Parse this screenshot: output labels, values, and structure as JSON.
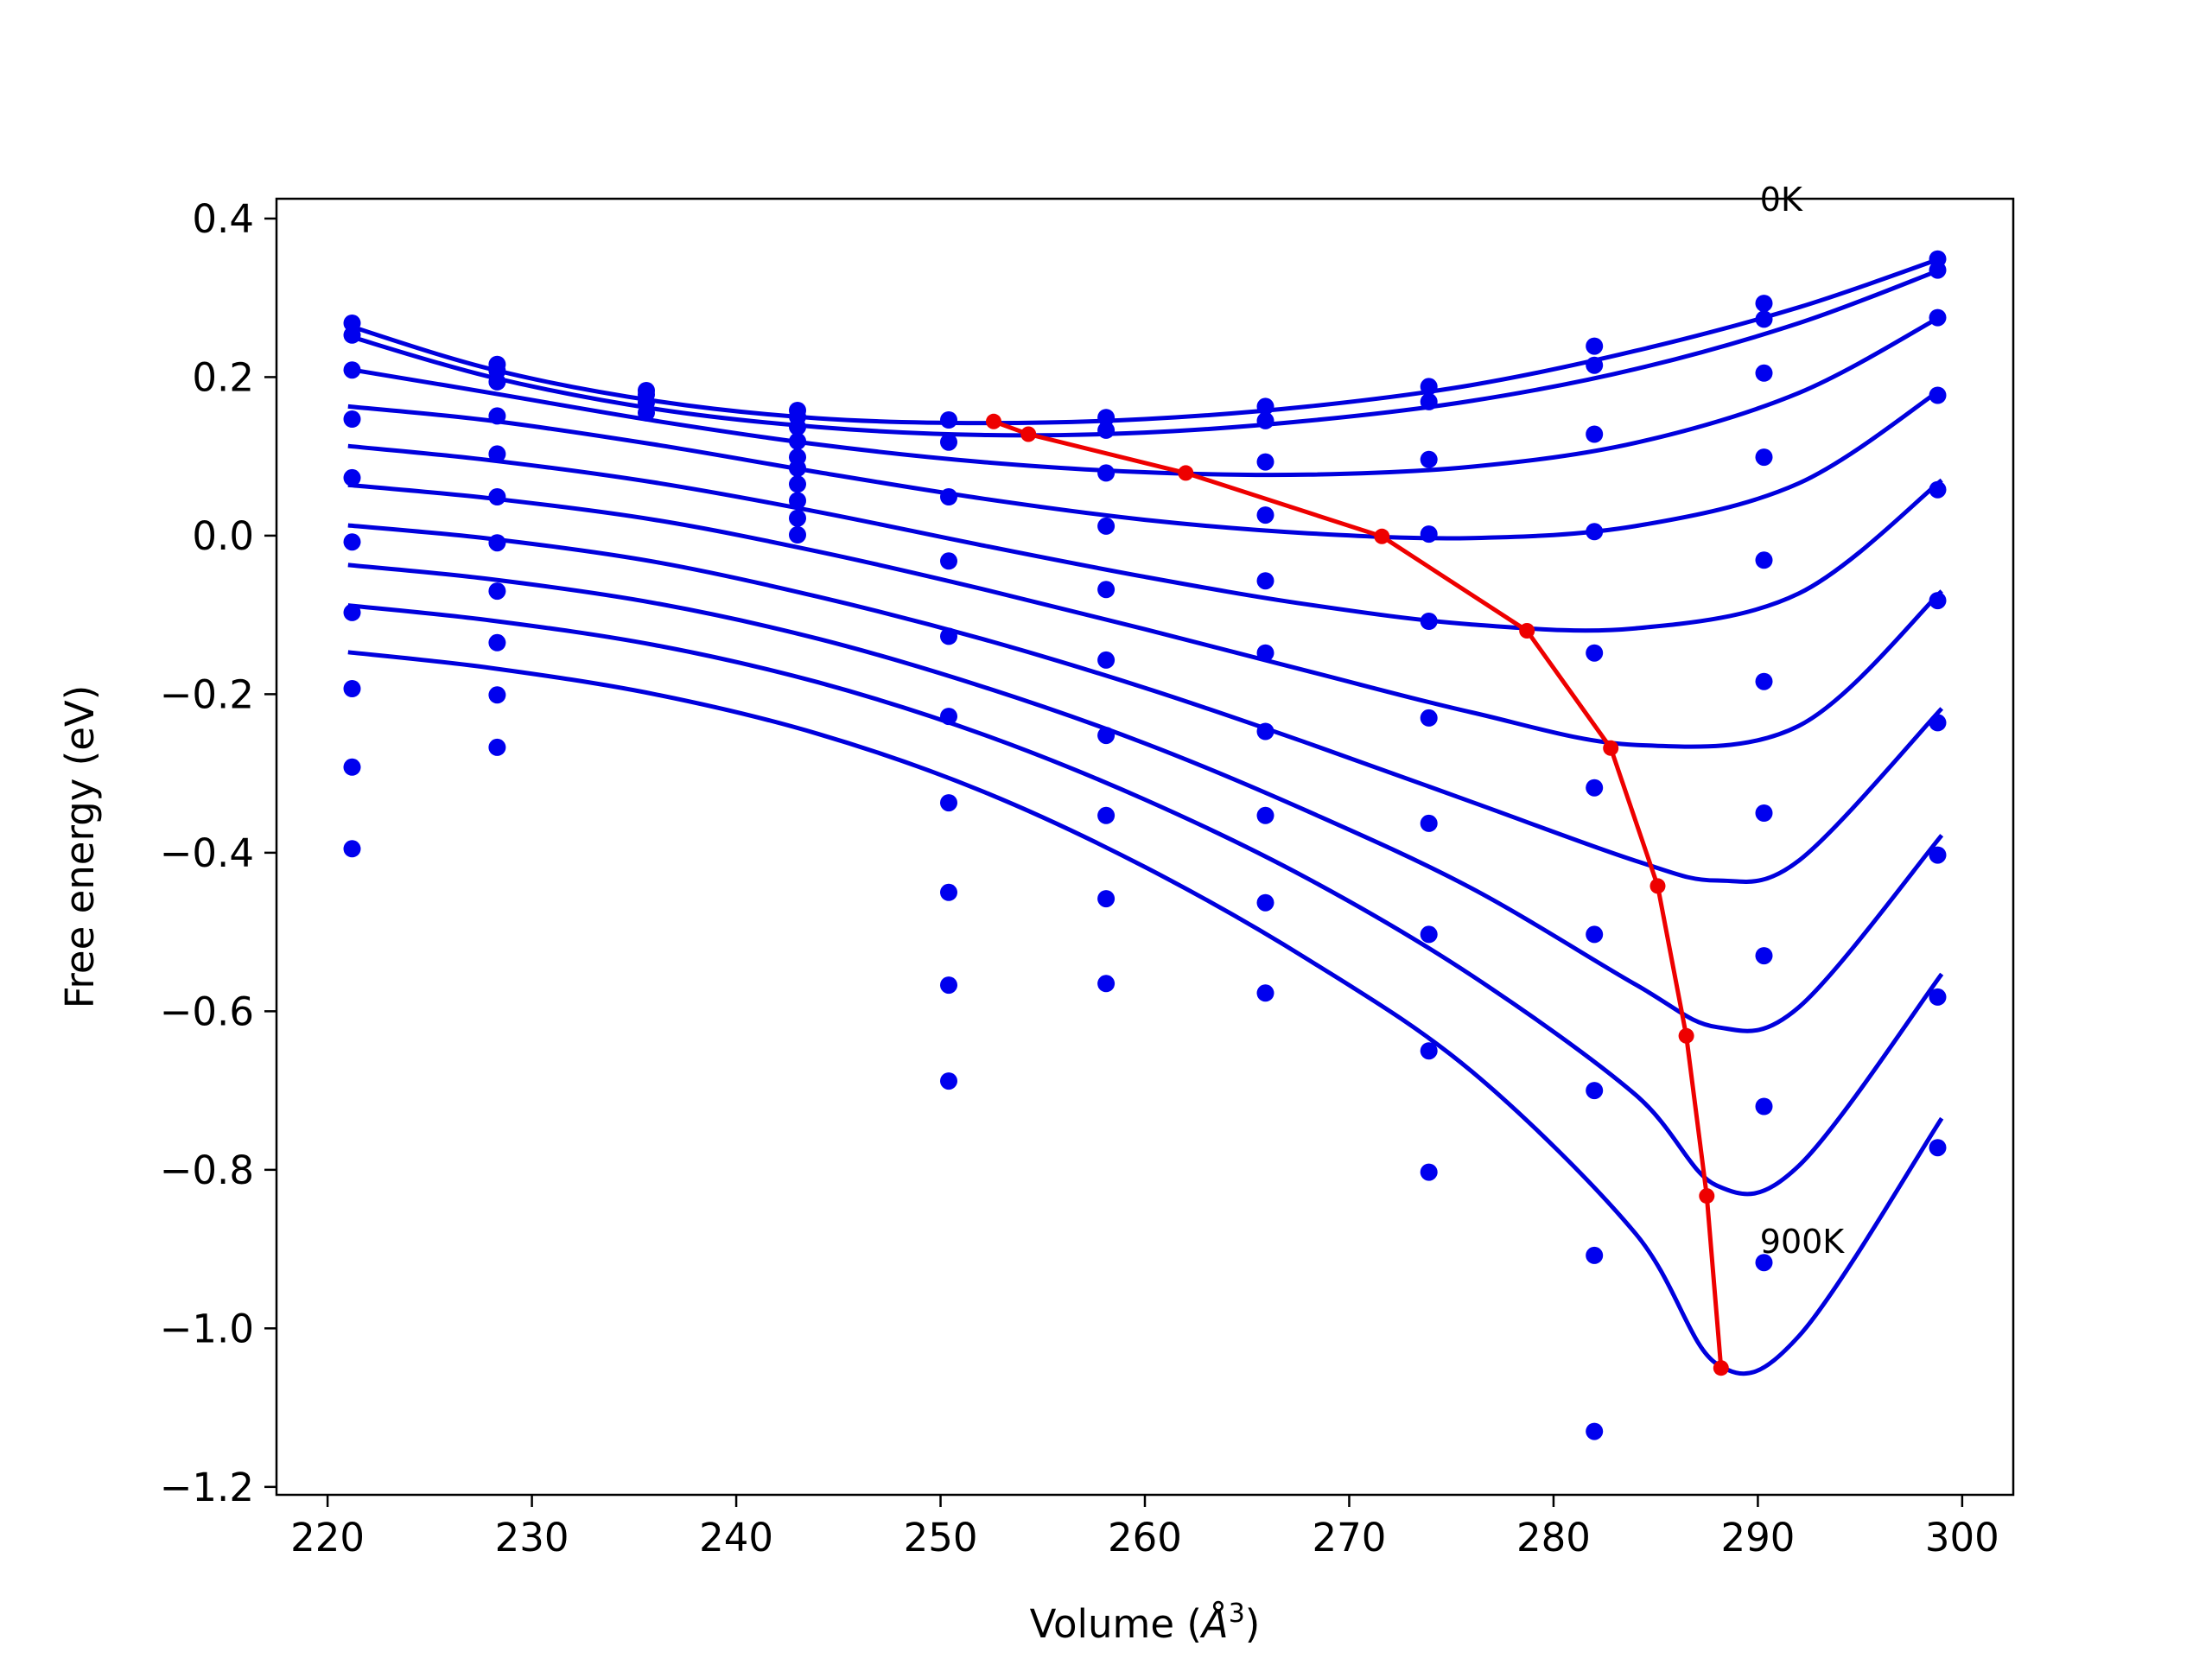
{
  "chart_data": {
    "type": "line",
    "title": "",
    "xlabel": "Volume (",
    "xlabel_math": "Å",
    "xlabel_sup": "3",
    "xlabel_close": ")",
    "ylabel": "Free energy (eV)",
    "xlim": [
      217.5,
      302.5
    ],
    "ylim": [
      -1.21,
      0.425
    ],
    "xticks": [
      220,
      230,
      240,
      250,
      260,
      270,
      280,
      290,
      300
    ],
    "xtick_labels": [
      "220",
      "230",
      "240",
      "250",
      "260",
      "270",
      "280",
      "290",
      "300"
    ],
    "yticks": [
      0.4,
      0.2,
      0.0,
      -0.2,
      -0.4,
      -0.6,
      -0.8,
      -1.0,
      -1.2
    ],
    "ytick_labels": [
      "0.4",
      "0.2",
      "0.0",
      "−0.2",
      "−0.4",
      "−0.6",
      "−0.8",
      "−1.0",
      "−1.2"
    ],
    "grid": false,
    "annotations": [
      {
        "text": "0K",
        "x": 290.1,
        "y": 0.41
      },
      {
        "text": "900K",
        "x": 290.1,
        "y": -0.905
      }
    ],
    "colors": {
      "fit": "#0000dd",
      "points": "#0000ee",
      "min_path": "#ee0000"
    },
    "fit_curves": [
      [
        [
          221,
          0.265
        ],
        [
          228,
          0.21
        ],
        [
          236,
          0.17
        ],
        [
          244,
          0.148
        ],
        [
          252,
          0.142
        ],
        [
          260,
          0.147
        ],
        [
          268,
          0.163
        ],
        [
          276,
          0.19
        ],
        [
          284,
          0.233
        ],
        [
          292,
          0.288
        ],
        [
          299,
          0.35
        ]
      ],
      [
        [
          221,
          0.252
        ],
        [
          228,
          0.2
        ],
        [
          236,
          0.16
        ],
        [
          244,
          0.137
        ],
        [
          252,
          0.127
        ],
        [
          260,
          0.13
        ],
        [
          268,
          0.145
        ],
        [
          276,
          0.17
        ],
        [
          284,
          0.21
        ],
        [
          292,
          0.268
        ],
        [
          299,
          0.336
        ]
      ],
      [
        [
          221,
          0.21
        ],
        [
          228,
          0.18
        ],
        [
          236,
          0.145
        ],
        [
          244,
          0.115
        ],
        [
          252,
          0.093
        ],
        [
          260,
          0.08
        ],
        [
          268,
          0.077
        ],
        [
          276,
          0.087
        ],
        [
          284,
          0.117
        ],
        [
          292,
          0.18
        ],
        [
          299,
          0.277
        ]
      ],
      [
        [
          221,
          0.163
        ],
        [
          228,
          0.145
        ],
        [
          236,
          0.115
        ],
        [
          244,
          0.08
        ],
        [
          252,
          0.047
        ],
        [
          260,
          0.02
        ],
        [
          268,
          0.003
        ],
        [
          276,
          -0.003
        ],
        [
          284,
          0.012
        ],
        [
          292,
          0.066
        ],
        [
          299,
          0.185
        ]
      ],
      [
        [
          221,
          0.113
        ],
        [
          228,
          0.095
        ],
        [
          236,
          0.067
        ],
        [
          244,
          0.03
        ],
        [
          252,
          -0.012
        ],
        [
          260,
          -0.052
        ],
        [
          268,
          -0.087
        ],
        [
          276,
          -0.112
        ],
        [
          284,
          -0.117
        ],
        [
          292,
          -0.073
        ],
        [
          299,
          0.07
        ]
      ],
      [
        [
          221,
          0.064
        ],
        [
          228,
          0.047
        ],
        [
          236,
          0.02
        ],
        [
          244,
          -0.02
        ],
        [
          252,
          -0.067
        ],
        [
          260,
          -0.118
        ],
        [
          268,
          -0.171
        ],
        [
          276,
          -0.223
        ],
        [
          284,
          -0.264
        ],
        [
          292,
          -0.24
        ],
        [
          299,
          -0.07
        ]
      ],
      [
        [
          221,
          0.013
        ],
        [
          228,
          -0.004
        ],
        [
          236,
          -0.033
        ],
        [
          244,
          -0.077
        ],
        [
          252,
          -0.13
        ],
        [
          260,
          -0.192
        ],
        [
          268,
          -0.262
        ],
        [
          276,
          -0.336
        ],
        [
          284,
          -0.41
        ],
        [
          288,
          -0.435
        ],
        [
          292,
          -0.41
        ],
        [
          299,
          -0.218
        ]
      ],
      [
        [
          221,
          -0.037
        ],
        [
          228,
          -0.055
        ],
        [
          236,
          -0.085
        ],
        [
          244,
          -0.13
        ],
        [
          252,
          -0.19
        ],
        [
          260,
          -0.262
        ],
        [
          268,
          -0.348
        ],
        [
          276,
          -0.445
        ],
        [
          284,
          -0.566
        ],
        [
          288,
          -0.62
        ],
        [
          292,
          -0.595
        ],
        [
          299,
          -0.378
        ]
      ],
      [
        [
          221,
          -0.088
        ],
        [
          228,
          -0.107
        ],
        [
          236,
          -0.138
        ],
        [
          244,
          -0.185
        ],
        [
          252,
          -0.25
        ],
        [
          260,
          -0.333
        ],
        [
          268,
          -0.433
        ],
        [
          276,
          -0.555
        ],
        [
          284,
          -0.705
        ],
        [
          288,
          -0.82
        ],
        [
          292,
          -0.795
        ],
        [
          299,
          -0.553
        ]
      ],
      [
        [
          221,
          -0.147
        ],
        [
          228,
          -0.167
        ],
        [
          236,
          -0.2
        ],
        [
          244,
          -0.25
        ],
        [
          252,
          -0.322
        ],
        [
          260,
          -0.418
        ],
        [
          268,
          -0.535
        ],
        [
          276,
          -0.676
        ],
        [
          284,
          -0.88
        ],
        [
          288,
          -1.045
        ],
        [
          292,
          -1.01
        ],
        [
          299,
          -0.735
        ]
      ]
    ],
    "data_points": [
      [
        221.2,
        0.268
      ],
      [
        221.2,
        0.253
      ],
      [
        221.2,
        0.209
      ],
      [
        221.2,
        0.147
      ],
      [
        221.2,
        0.073
      ],
      [
        221.2,
        -0.008
      ],
      [
        221.2,
        -0.097
      ],
      [
        221.2,
        -0.193
      ],
      [
        221.2,
        -0.292
      ],
      [
        221.2,
        -0.395
      ],
      [
        228.3,
        0.216
      ],
      [
        228.3,
        0.208
      ],
      [
        228.3,
        0.194
      ],
      [
        228.3,
        0.151
      ],
      [
        228.3,
        0.103
      ],
      [
        228.3,
        0.049
      ],
      [
        228.3,
        -0.009
      ],
      [
        228.3,
        -0.07
      ],
      [
        228.3,
        -0.135
      ],
      [
        228.3,
        -0.201
      ],
      [
        228.3,
        -0.267
      ],
      [
        235.6,
        0.183
      ],
      [
        235.6,
        0.178
      ],
      [
        235.6,
        0.168
      ],
      [
        235.6,
        0.155
      ],
      [
        243.0,
        0.158
      ],
      [
        243.0,
        0.15
      ],
      [
        243.0,
        0.137
      ],
      [
        243.0,
        0.119
      ],
      [
        243.0,
        0.099
      ],
      [
        243.0,
        0.085
      ],
      [
        243.0,
        0.065
      ],
      [
        243.0,
        0.044
      ],
      [
        243.0,
        0.022
      ],
      [
        243.0,
        0.001
      ],
      [
        250.4,
        0.146
      ],
      [
        250.4,
        0.118
      ],
      [
        250.4,
        0.049
      ],
      [
        250.4,
        -0.032
      ],
      [
        250.4,
        -0.127
      ],
      [
        250.4,
        -0.228
      ],
      [
        250.4,
        -0.337
      ],
      [
        250.4,
        -0.45
      ],
      [
        250.4,
        -0.567
      ],
      [
        250.4,
        -0.688
      ],
      [
        258.1,
        0.149
      ],
      [
        258.1,
        0.133
      ],
      [
        258.1,
        0.079
      ],
      [
        258.1,
        0.012
      ],
      [
        258.1,
        -0.068
      ],
      [
        258.1,
        -0.157
      ],
      [
        258.1,
        -0.252
      ],
      [
        258.1,
        -0.353
      ],
      [
        258.1,
        -0.458
      ],
      [
        258.1,
        -0.565
      ],
      [
        265.9,
        0.163
      ],
      [
        265.9,
        0.145
      ],
      [
        265.9,
        0.093
      ],
      [
        265.9,
        0.026
      ],
      [
        265.9,
        -0.057
      ],
      [
        265.9,
        -0.148
      ],
      [
        265.9,
        -0.247
      ],
      [
        265.9,
        -0.353
      ],
      [
        265.9,
        -0.463
      ],
      [
        265.9,
        -0.577
      ],
      [
        273.9,
        0.188
      ],
      [
        273.9,
        0.169
      ],
      [
        273.9,
        0.096
      ],
      [
        273.9,
        0.002
      ],
      [
        273.9,
        -0.108
      ],
      [
        273.9,
        -0.23
      ],
      [
        273.9,
        -0.363
      ],
      [
        273.9,
        -0.503
      ],
      [
        273.9,
        -0.65
      ],
      [
        273.9,
        -0.803
      ],
      [
        282.0,
        0.239
      ],
      [
        282.0,
        0.215
      ],
      [
        282.0,
        0.128
      ],
      [
        282.0,
        0.005
      ],
      [
        282.0,
        -0.148
      ],
      [
        282.0,
        -0.318
      ],
      [
        282.0,
        -0.503
      ],
      [
        282.0,
        -0.7
      ],
      [
        282.0,
        -0.908
      ],
      [
        282.0,
        -1.13
      ],
      [
        290.3,
        0.293
      ],
      [
        290.3,
        0.273
      ],
      [
        290.3,
        0.205
      ],
      [
        290.3,
        0.099
      ],
      [
        290.3,
        -0.031
      ],
      [
        290.3,
        -0.184
      ],
      [
        290.3,
        -0.35
      ],
      [
        290.3,
        -0.53
      ],
      [
        290.3,
        -0.72
      ],
      [
        290.3,
        -0.917
      ],
      [
        298.8,
        0.349
      ],
      [
        298.8,
        0.335
      ],
      [
        298.8,
        0.275
      ],
      [
        298.8,
        0.177
      ],
      [
        298.8,
        0.058
      ],
      [
        298.8,
        -0.082
      ],
      [
        298.8,
        -0.236
      ],
      [
        298.8,
        -0.403
      ],
      [
        298.8,
        -0.582
      ],
      [
        298.8,
        -0.772
      ]
    ],
    "minimum_path": [
      [
        252.6,
        0.144
      ],
      [
        254.3,
        0.128
      ],
      [
        262.0,
        0.079
      ],
      [
        271.6,
        -0.001
      ],
      [
        278.7,
        -0.12
      ],
      [
        282.8,
        -0.268
      ],
      [
        285.1,
        -0.442
      ],
      [
        286.5,
        -0.631
      ],
      [
        287.5,
        -0.833
      ],
      [
        288.2,
        -1.05
      ]
    ]
  }
}
